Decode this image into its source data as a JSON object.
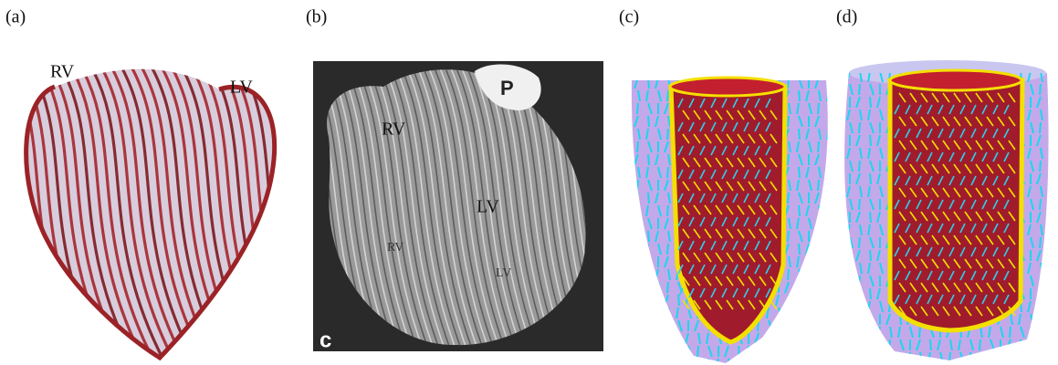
{
  "panels": [
    {
      "label": "(a)",
      "annotations": [
        "RV",
        "LV"
      ]
    },
    {
      "label": "(b)",
      "annotations": [
        "P",
        "RV",
        "LV",
        "RV",
        "LV",
        "c"
      ]
    },
    {
      "label": "(c)"
    },
    {
      "label": "(d)"
    }
  ]
}
